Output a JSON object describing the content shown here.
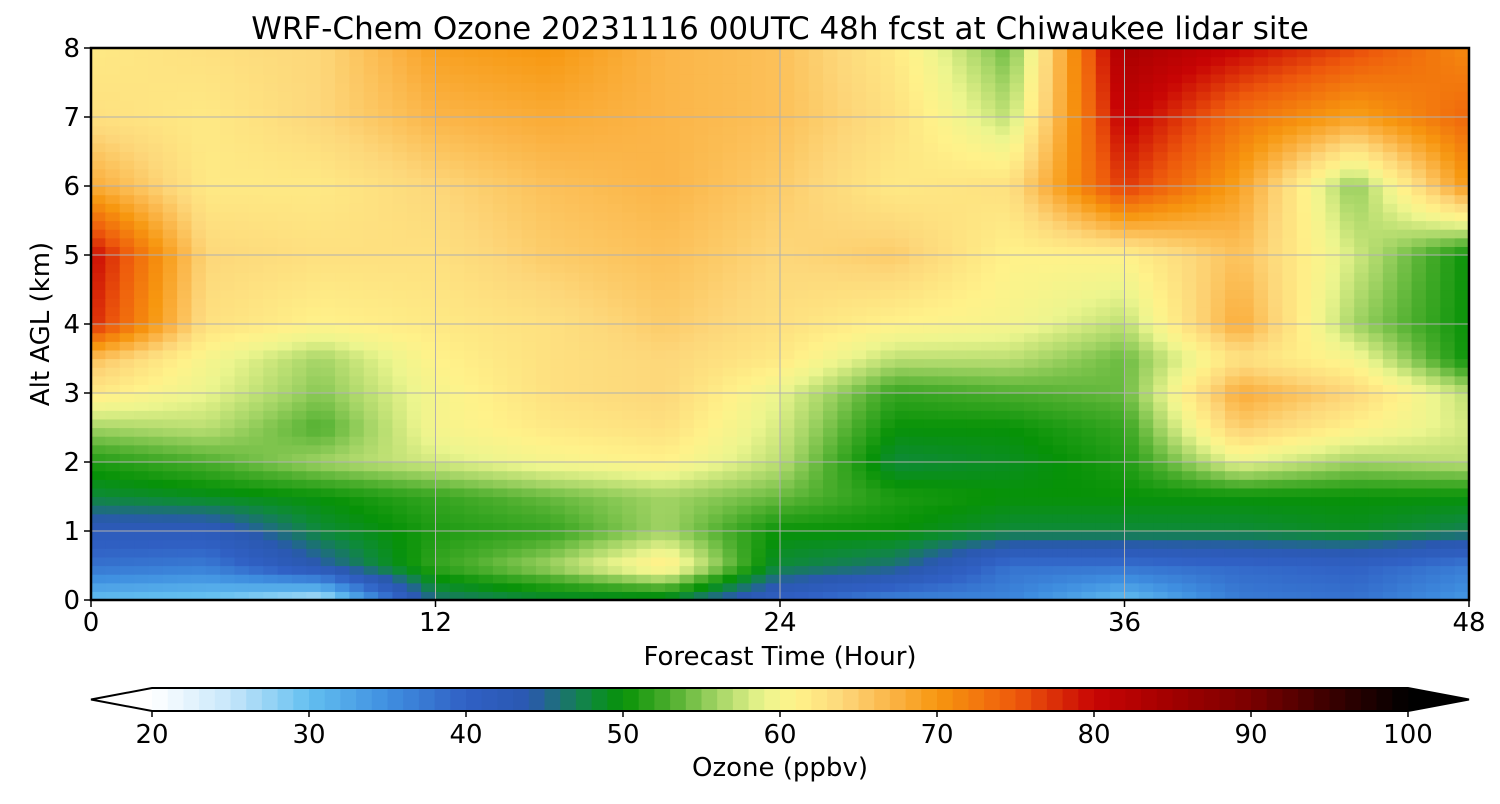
{
  "chart_data": {
    "type": "heatmap",
    "title": "WRF-Chem Ozone  20231116 00UTC 48h fcst at Chiwaukee lidar site",
    "xlabel": "Forecast Time (Hour)",
    "ylabel": "Alt AGL (km)",
    "xlim": [
      0,
      48
    ],
    "ylim": [
      0,
      8
    ],
    "xticks": [
      "0",
      "12",
      "24",
      "36",
      "48"
    ],
    "yticks": [
      "0",
      "1",
      "2",
      "3",
      "4",
      "5",
      "6",
      "7",
      "8"
    ],
    "grid": true,
    "x": [
      0,
      4,
      8,
      12,
      16,
      20,
      24,
      28,
      32,
      36,
      40,
      44,
      48
    ],
    "y": [
      0,
      0.5,
      1,
      1.5,
      2,
      2.5,
      3,
      3.5,
      4,
      5,
      6,
      7,
      8
    ],
    "z": [
      [
        30,
        29,
        25,
        46,
        48,
        48,
        40,
        36,
        36,
        30,
        37,
        38,
        34
      ],
      [
        38,
        37,
        44,
        52,
        56,
        62,
        48,
        46,
        38,
        38,
        39,
        40,
        37
      ],
      [
        42,
        42,
        48,
        51,
        52,
        56,
        50,
        50,
        48,
        48,
        48,
        49,
        47
      ],
      [
        48,
        49,
        50,
        52,
        54,
        56,
        54,
        51,
        50,
        50,
        50,
        50,
        50
      ],
      [
        51,
        53,
        56,
        58,
        60,
        61,
        57,
        48,
        49,
        51,
        59,
        56,
        57
      ],
      [
        56,
        57,
        53,
        60,
        62,
        63,
        58,
        50,
        50,
        52,
        65,
        61,
        58
      ],
      [
        62,
        59,
        55,
        60,
        63,
        64,
        59,
        52,
        53,
        54,
        68,
        64,
        57
      ],
      [
        66,
        60,
        56,
        61,
        63,
        64,
        62,
        57,
        57,
        54,
        63,
        60,
        50
      ],
      [
        78,
        63,
        61,
        62,
        63,
        65,
        63,
        61,
        60,
        57,
        68,
        56,
        50
      ],
      [
        80,
        64,
        63,
        63,
        65,
        66,
        64,
        65,
        61,
        61,
        66,
        58,
        50
      ],
      [
        68,
        62,
        62,
        64,
        66,
        67,
        65,
        62,
        63,
        77,
        69,
        55,
        70
      ],
      [
        63,
        62,
        64,
        67,
        68,
        67,
        66,
        63,
        57,
        81,
        73,
        69,
        74
      ],
      [
        62,
        63,
        64,
        69,
        70,
        67,
        66,
        62,
        54,
        84,
        80,
        76,
        71
      ]
    ],
    "colorbar": {
      "label": "Ozone  (ppbv)",
      "min": 20,
      "max": 100,
      "ticks": [
        "20",
        "30",
        "40",
        "50",
        "60",
        "70",
        "80",
        "90",
        "100"
      ],
      "extend": "both",
      "colors": [
        {
          "v": 20,
          "c": "#ffffff"
        },
        {
          "v": 25,
          "c": "#c6e6fa"
        },
        {
          "v": 30,
          "c": "#63bff0"
        },
        {
          "v": 35,
          "c": "#3f8fe0"
        },
        {
          "v": 40,
          "c": "#3060c4"
        },
        {
          "v": 44,
          "c": "#2a58b0"
        },
        {
          "v": 48,
          "c": "#0e8a3a"
        },
        {
          "v": 50,
          "c": "#079207"
        },
        {
          "v": 53,
          "c": "#4cae2d"
        },
        {
          "v": 56,
          "c": "#a3d465"
        },
        {
          "v": 59,
          "c": "#ecf58e"
        },
        {
          "v": 61,
          "c": "#fff28a"
        },
        {
          "v": 64,
          "c": "#fdd77a"
        },
        {
          "v": 67,
          "c": "#fbb548"
        },
        {
          "v": 70,
          "c": "#f7970f"
        },
        {
          "v": 75,
          "c": "#ee5a0c"
        },
        {
          "v": 80,
          "c": "#c80404"
        },
        {
          "v": 85,
          "c": "#a10000"
        },
        {
          "v": 90,
          "c": "#7a0000"
        },
        {
          "v": 95,
          "c": "#3b0000"
        },
        {
          "v": 100,
          "c": "#000000"
        }
      ]
    }
  }
}
